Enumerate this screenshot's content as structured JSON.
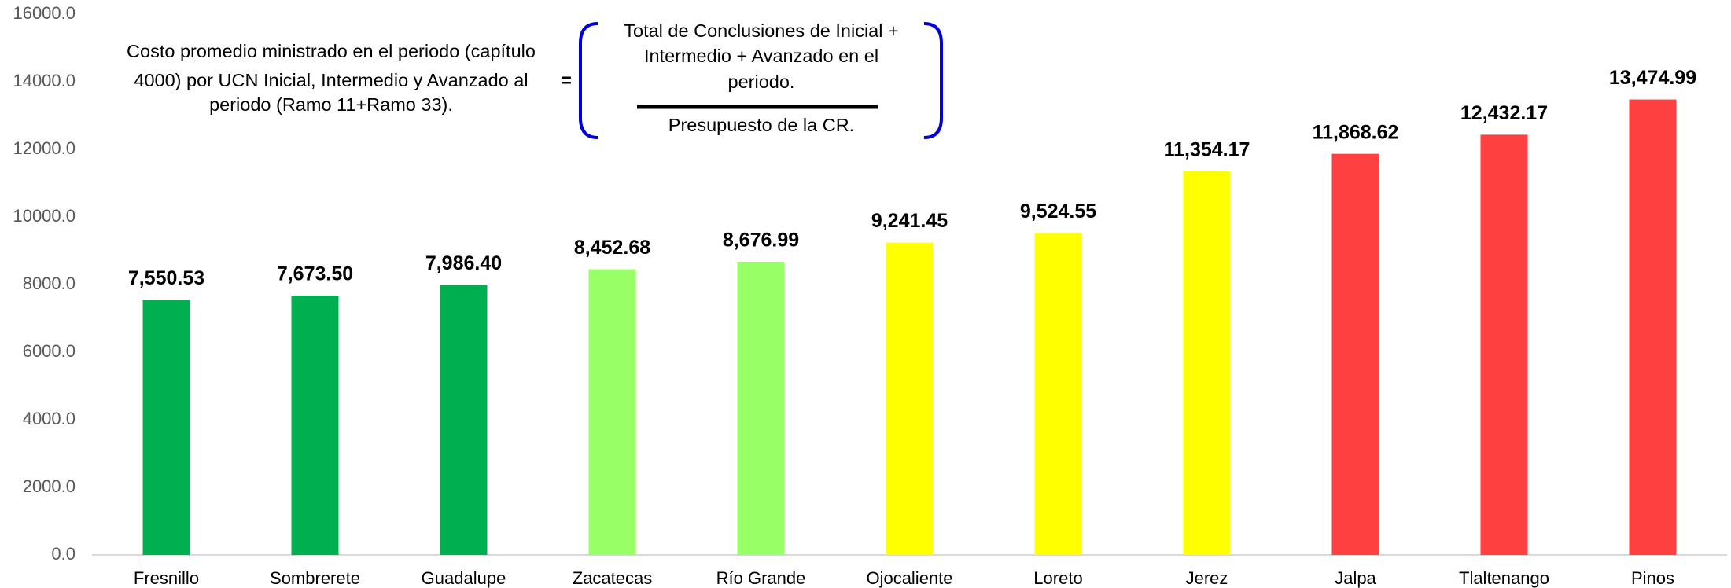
{
  "chart_data": {
    "type": "bar",
    "annotation": {
      "left_lines": [
        "Costo promedio ministrado en el periodo (capítulo",
        "4000) por UCN Inicial, Intermedio y Avanzado al",
        "periodo (Ramo 11+Ramo 33)."
      ],
      "equals": "=",
      "numerator_lines": [
        "Total de Conclusiones de Inicial +",
        "Intermedio + Avanzado en el",
        "periodo."
      ],
      "denominator": "Presupuesto de la CR."
    },
    "categories": [
      "Fresnillo",
      "Sombrerete",
      "Guadalupe",
      "Zacatecas",
      "Río Grande",
      "Ojocaliente",
      "Loreto",
      "Jerez",
      "Jalpa",
      "Tlaltenango",
      "Pinos"
    ],
    "values": [
      7550.53,
      7673.5,
      7986.4,
      8452.68,
      8676.99,
      9241.45,
      9524.55,
      11354.17,
      11868.62,
      12432.17,
      13474.99
    ],
    "value_labels": [
      "7,550.53",
      "7,673.50",
      "7,986.40",
      "8,452.68",
      "8,676.99",
      "9,241.45",
      "9,524.55",
      "11,354.17",
      "11,868.62",
      "12,432.17",
      "13,474.99"
    ],
    "colors": [
      "#00b050",
      "#00b050",
      "#00b050",
      "#99ff66",
      "#99ff66",
      "#ffff00",
      "#ffff00",
      "#ffff00",
      "#ff4040",
      "#ff4040",
      "#ff4040"
    ],
    "ylim": [
      0,
      16000
    ],
    "yticks": [
      {
        "value": 0,
        "label": "0.0"
      },
      {
        "value": 2000,
        "label": "2000.0"
      },
      {
        "value": 4000,
        "label": "4000.0"
      },
      {
        "value": 6000,
        "label": "6000.0"
      },
      {
        "value": 8000,
        "label": "8000.0"
      },
      {
        "value": 10000,
        "label": "10000.0"
      },
      {
        "value": 12000,
        "label": "12000.0"
      },
      {
        "value": 14000,
        "label": "14000.0"
      },
      {
        "value": 16000,
        "label": "16000.0"
      }
    ],
    "grid": false
  }
}
